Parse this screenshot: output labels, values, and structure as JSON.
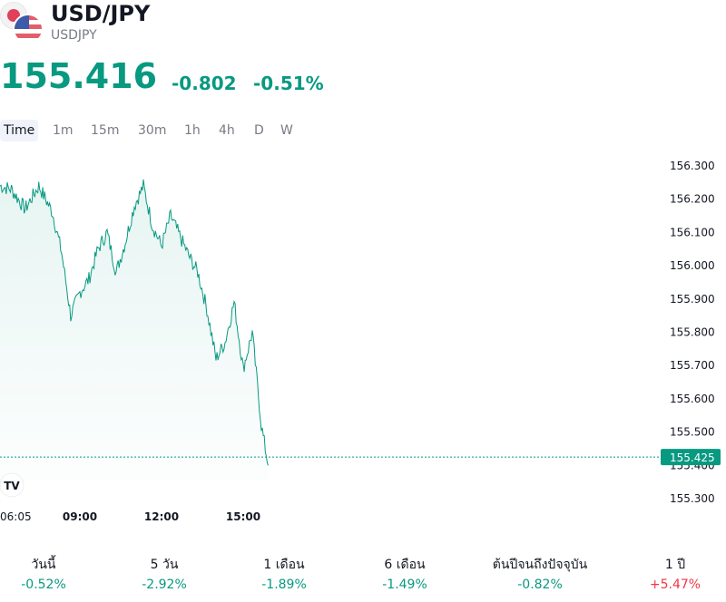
{
  "header": {
    "symbol": "USD/JPY",
    "ticker": "USDJPY",
    "price": "155.416",
    "change": "-0.802",
    "change_percent": "-0.51%"
  },
  "tabs": [
    {
      "label": "Time",
      "active": true
    },
    {
      "label": "1m"
    },
    {
      "label": "15m"
    },
    {
      "label": "30m"
    },
    {
      "label": "1h"
    },
    {
      "label": "4h"
    },
    {
      "label": "D"
    },
    {
      "label": "W"
    }
  ],
  "colors": {
    "positive": "#089981",
    "negative": "#f23645",
    "line": "#089981",
    "label_bg": "#089981"
  },
  "icons": [
    "japan-flag-icon",
    "us-flag-icon",
    "tradingview-logo-icon"
  ],
  "chart_data": {
    "type": "line",
    "y_ticks": [
      "156.300",
      "156.200",
      "156.100",
      "156.000",
      "155.900",
      "155.800",
      "155.700",
      "155.600",
      "155.500",
      "155.400",
      "155.300"
    ],
    "ylim": [
      155.27,
      156.33
    ],
    "x_ticks": [
      "06:05",
      "09:00",
      "12:00",
      "15:00"
    ],
    "current_price_label": "155.425",
    "current_price": 155.425,
    "grid": false,
    "series": [
      {
        "x": [
          "06:05",
          "06:30",
          "07:00",
          "07:30",
          "08:00",
          "08:20",
          "08:40",
          "09:00",
          "09:20",
          "09:40",
          "10:00",
          "10:20",
          "10:40",
          "11:00",
          "11:20",
          "11:40",
          "12:00",
          "12:20",
          "12:40",
          "13:00",
          "13:20",
          "13:40",
          "14:00",
          "14:20",
          "14:40",
          "15:00",
          "15:20",
          "15:40",
          "15:55"
        ],
        "values": [
          156.24,
          156.23,
          156.17,
          156.24,
          156.16,
          156.04,
          155.85,
          155.92,
          155.96,
          156.05,
          156.1,
          155.98,
          156.07,
          156.18,
          156.24,
          156.12,
          156.06,
          156.15,
          156.09,
          156.03,
          155.98,
          155.87,
          155.72,
          155.77,
          155.89,
          155.69,
          155.8,
          155.52,
          155.4
        ]
      }
    ]
  },
  "stats": [
    {
      "label": "วันนี้",
      "value": "-0.52%",
      "sign": "negative"
    },
    {
      "label": "5 วัน",
      "value": "-2.92%",
      "sign": "negative"
    },
    {
      "label": "1 เดือน",
      "value": "-1.89%",
      "sign": "negative"
    },
    {
      "label": "6 เดือน",
      "value": "-1.49%",
      "sign": "negative"
    },
    {
      "label": "ต้นปีจนถึงปัจจุบัน",
      "value": "-0.82%",
      "sign": "negative"
    },
    {
      "label": "1 ปี",
      "value": "+5.47%",
      "sign": "positive"
    }
  ]
}
